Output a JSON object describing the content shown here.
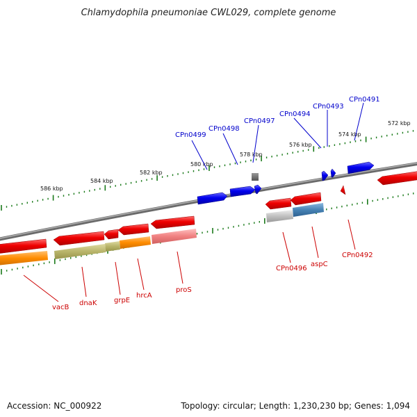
{
  "title": "Chlamydophila pneumoniae CWL029, complete genome",
  "footer": {
    "accession": "Accession: NC_000922",
    "summary": "Topology: circular; Length: 1,230,230 bp; Genes: 1,094"
  },
  "colors": {
    "forward_gene": "#0000ee",
    "reverse_gene": "#ee0000",
    "forward_label": "#0000cc",
    "reverse_label": "#cc0000",
    "tick": "#1a7a1a",
    "backbone": "#808080",
    "cog_orange": "#ff8c00",
    "cog_olive": "#b8b46a",
    "cog_pink": "#f08080",
    "cog_blue": "#4682b4",
    "cog_gray": "#bbbbbb"
  },
  "scale_labels": [
    "586 kbp",
    "584 kbp",
    "582 kbp",
    "580 kbp",
    "578 kbp",
    "576 kbp",
    "574 kbp",
    "572 kbp"
  ],
  "forward_labels": [
    "CPn0499",
    "CPn0498",
    "CPn0497",
    "CPn0494",
    "CPn0493",
    "CPn0491"
  ],
  "reverse_labels": [
    "vacB",
    "dnaK",
    "grpE",
    "hrcA",
    "proS",
    "CPn0496",
    "aspC",
    "CPn0492"
  ]
}
